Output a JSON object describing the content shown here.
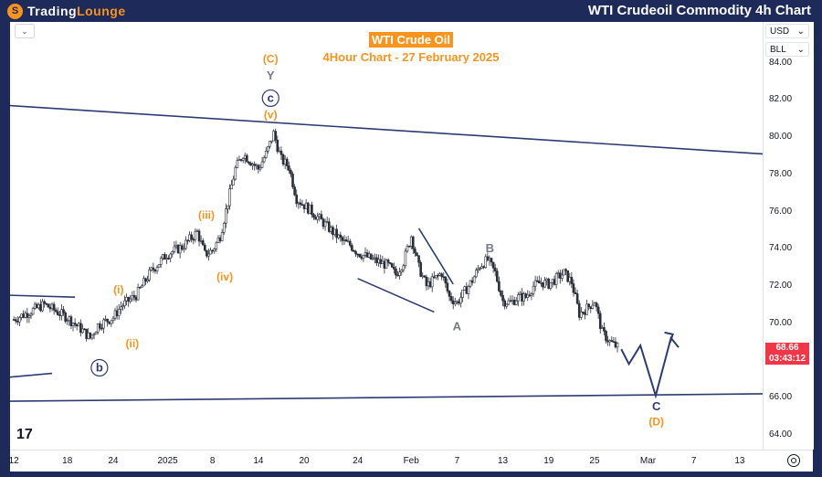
{
  "brand": {
    "part1": "Trading",
    "part2": "Lounge",
    "logo_glyph": "S"
  },
  "header_title": "WTI Crudeoil Commodity 4h Chart",
  "chart_header": {
    "symbol": "WTI Crude Oil",
    "subtitle": "4Hour Chart - 27 February 2025"
  },
  "axis_buttons": {
    "currency": "USD",
    "scale": "BLL",
    "menu_glyph": "⌄",
    "chevron": "⌄"
  },
  "current_price": {
    "value": "68.66",
    "countdown": "03:43:12"
  },
  "tv_mark": "17",
  "colors": {
    "frame": "#1e2a5a",
    "accent": "#f7941d",
    "trendline": "#2e3b73",
    "candle": "#2a2e39",
    "price_tag": "#f23645",
    "grey_label": "#787b86"
  },
  "chart_data": {
    "type": "candlestick",
    "title": "WTI Crude Oil",
    "subtitle": "4Hour Chart - 27 February 2025",
    "ylim": [
      63.2,
      86.2
    ],
    "y_ticks": [
      "64.00",
      "66.00",
      "68.00",
      "70.00",
      "72.00",
      "74.00",
      "76.00",
      "78.00",
      "80.00",
      "82.00",
      "84.00"
    ],
    "x_ticks": [
      "12",
      "18",
      "24",
      "2025",
      "8",
      "14",
      "20",
      "24",
      "Feb",
      "7",
      "13",
      "19",
      "25",
      "Mar",
      "7",
      "13"
    ],
    "x_tick_positions": [
      0,
      7,
      13,
      20,
      26,
      32,
      38,
      45,
      52,
      58,
      64,
      70,
      76,
      83,
      89,
      95
    ],
    "x_range": [
      -0.5,
      98
    ],
    "close_path": [
      [
        0,
        70.2
      ],
      [
        4,
        71.0
      ],
      [
        7,
        70.3
      ],
      [
        9,
        69.6
      ],
      [
        10,
        69.2
      ],
      [
        11,
        69.9
      ],
      [
        13,
        70.3
      ],
      [
        14,
        70.9
      ],
      [
        16,
        71.5
      ],
      [
        18,
        72.8
      ],
      [
        20,
        73.7
      ],
      [
        22,
        74.1
      ],
      [
        24,
        74.9
      ],
      [
        25,
        73.7
      ],
      [
        26,
        73.9
      ],
      [
        27,
        74.7
      ],
      [
        28,
        76.5
      ],
      [
        29,
        78.3
      ],
      [
        30,
        79.1
      ],
      [
        32,
        78.3
      ],
      [
        33,
        79.1
      ],
      [
        34,
        80.2
      ],
      [
        35,
        78.8
      ],
      [
        36,
        78.4
      ],
      [
        37,
        76.7
      ],
      [
        39,
        76.0
      ],
      [
        41,
        75.2
      ],
      [
        43,
        74.4
      ],
      [
        44,
        74.2
      ],
      [
        45,
        73.8
      ],
      [
        47,
        73.4
      ],
      [
        49,
        73.1
      ],
      [
        50,
        72.6
      ],
      [
        51,
        73.3
      ],
      [
        52,
        74.7
      ],
      [
        53,
        73.0
      ],
      [
        54,
        72.0
      ],
      [
        56,
        72.7
      ],
      [
        57,
        71.4
      ],
      [
        58,
        71.1
      ],
      [
        59,
        71.7
      ],
      [
        60,
        72.3
      ],
      [
        61,
        73.1
      ],
      [
        62,
        73.4
      ],
      [
        63,
        72.7
      ],
      [
        64,
        71.2
      ],
      [
        65,
        71.1
      ],
      [
        66,
        71.4
      ],
      [
        67,
        71.4
      ],
      [
        68,
        72.0
      ],
      [
        69,
        72.2
      ],
      [
        70,
        72.1
      ],
      [
        71,
        72.4
      ],
      [
        72,
        72.7
      ],
      [
        73,
        72.2
      ],
      [
        74,
        70.5
      ],
      [
        75,
        70.8
      ],
      [
        76,
        71.2
      ],
      [
        77,
        69.5
      ],
      [
        78,
        69.0
      ],
      [
        79,
        68.7
      ]
    ],
    "projection": [
      [
        79.5,
        68.6
      ],
      [
        80.5,
        67.8
      ],
      [
        82,
        68.8
      ],
      [
        84,
        66.1
      ],
      [
        86,
        69.2
      ],
      [
        87,
        68.7
      ]
    ],
    "trendlines": [
      {
        "from": [
          -0.5,
          81.7
        ],
        "to": [
          98,
          79.1
        ]
      },
      {
        "from": [
          -0.5,
          71.5
        ],
        "to": [
          8,
          71.4
        ]
      },
      {
        "from": [
          -0.5,
          67.1
        ],
        "to": [
          5,
          67.3
        ]
      },
      {
        "from": [
          -0.5,
          65.8
        ],
        "to": [
          98,
          66.2
        ]
      },
      {
        "from": [
          45,
          72.4
        ],
        "to": [
          55,
          70.6
        ]
      },
      {
        "from": [
          53,
          75.1
        ],
        "to": [
          57.5,
          72.1
        ]
      }
    ],
    "wave_labels": [
      {
        "text": "(C)",
        "x": 33.6,
        "y": 84.2,
        "color": "#f7941d",
        "circle": false
      },
      {
        "text": "Y",
        "x": 33.6,
        "y": 83.3,
        "color": "#787b86",
        "circle": false
      },
      {
        "text": "c",
        "x": 33.6,
        "y": 82.1,
        "color": "#2e3b73",
        "circle": true
      },
      {
        "text": "(v)",
        "x": 33.6,
        "y": 81.2,
        "color": "#f7941d",
        "circle": false
      },
      {
        "text": "(iii)",
        "x": 25.2,
        "y": 75.8,
        "color": "#f7941d",
        "circle": false
      },
      {
        "text": "(iv)",
        "x": 27.6,
        "y": 72.5,
        "color": "#f7941d",
        "circle": false
      },
      {
        "text": "(i)",
        "x": 13.7,
        "y": 71.8,
        "color": "#f7941d",
        "circle": false
      },
      {
        "text": "(ii)",
        "x": 15.5,
        "y": 68.9,
        "color": "#f7941d",
        "circle": false
      },
      {
        "text": "b",
        "x": 11.2,
        "y": 67.6,
        "color": "#2e3b73",
        "circle": true
      },
      {
        "text": "A",
        "x": 58.0,
        "y": 69.8,
        "color": "#787b86",
        "circle": false
      },
      {
        "text": "B",
        "x": 62.3,
        "y": 74.0,
        "color": "#787b86",
        "circle": false
      },
      {
        "text": "C",
        "x": 84.1,
        "y": 65.5,
        "color": "#2e3b73",
        "circle": false
      },
      {
        "text": "(D)",
        "x": 84.1,
        "y": 64.7,
        "color": "#f7941d",
        "circle": false
      }
    ]
  }
}
